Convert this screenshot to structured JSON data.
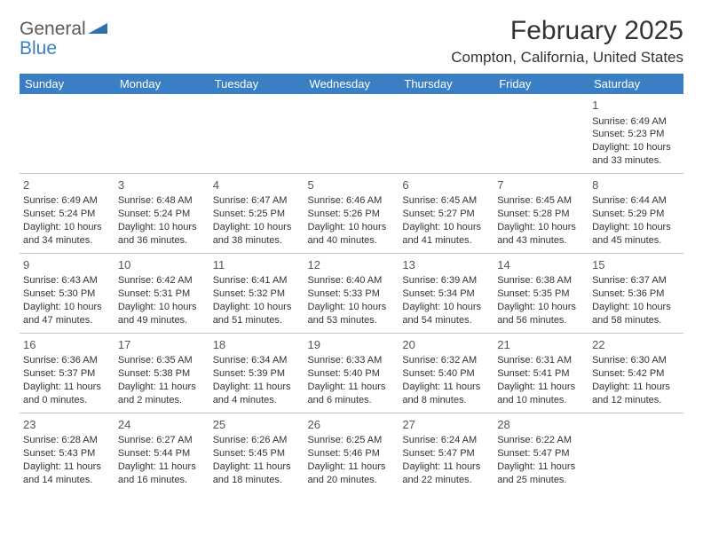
{
  "logo": {
    "top": "General",
    "bottom": "Blue",
    "triangle_color": "#2f6fb0"
  },
  "header": {
    "month_title": "February 2025",
    "location": "Compton, California, United States"
  },
  "colors": {
    "header_bg": "#3a7fc4",
    "header_text": "#ffffff",
    "grid_line": "#b8c5d0",
    "text": "#333333",
    "logo_gray": "#5a5a5a",
    "logo_blue": "#3a7fc4"
  },
  "weekdays": [
    "Sunday",
    "Monday",
    "Tuesday",
    "Wednesday",
    "Thursday",
    "Friday",
    "Saturday"
  ],
  "weeks": [
    [
      null,
      null,
      null,
      null,
      null,
      null,
      {
        "n": "1",
        "sr": "Sunrise: 6:49 AM",
        "ss": "Sunset: 5:23 PM",
        "d1": "Daylight: 10 hours",
        "d2": "and 33 minutes."
      }
    ],
    [
      {
        "n": "2",
        "sr": "Sunrise: 6:49 AM",
        "ss": "Sunset: 5:24 PM",
        "d1": "Daylight: 10 hours",
        "d2": "and 34 minutes."
      },
      {
        "n": "3",
        "sr": "Sunrise: 6:48 AM",
        "ss": "Sunset: 5:24 PM",
        "d1": "Daylight: 10 hours",
        "d2": "and 36 minutes."
      },
      {
        "n": "4",
        "sr": "Sunrise: 6:47 AM",
        "ss": "Sunset: 5:25 PM",
        "d1": "Daylight: 10 hours",
        "d2": "and 38 minutes."
      },
      {
        "n": "5",
        "sr": "Sunrise: 6:46 AM",
        "ss": "Sunset: 5:26 PM",
        "d1": "Daylight: 10 hours",
        "d2": "and 40 minutes."
      },
      {
        "n": "6",
        "sr": "Sunrise: 6:45 AM",
        "ss": "Sunset: 5:27 PM",
        "d1": "Daylight: 10 hours",
        "d2": "and 41 minutes."
      },
      {
        "n": "7",
        "sr": "Sunrise: 6:45 AM",
        "ss": "Sunset: 5:28 PM",
        "d1": "Daylight: 10 hours",
        "d2": "and 43 minutes."
      },
      {
        "n": "8",
        "sr": "Sunrise: 6:44 AM",
        "ss": "Sunset: 5:29 PM",
        "d1": "Daylight: 10 hours",
        "d2": "and 45 minutes."
      }
    ],
    [
      {
        "n": "9",
        "sr": "Sunrise: 6:43 AM",
        "ss": "Sunset: 5:30 PM",
        "d1": "Daylight: 10 hours",
        "d2": "and 47 minutes."
      },
      {
        "n": "10",
        "sr": "Sunrise: 6:42 AM",
        "ss": "Sunset: 5:31 PM",
        "d1": "Daylight: 10 hours",
        "d2": "and 49 minutes."
      },
      {
        "n": "11",
        "sr": "Sunrise: 6:41 AM",
        "ss": "Sunset: 5:32 PM",
        "d1": "Daylight: 10 hours",
        "d2": "and 51 minutes."
      },
      {
        "n": "12",
        "sr": "Sunrise: 6:40 AM",
        "ss": "Sunset: 5:33 PM",
        "d1": "Daylight: 10 hours",
        "d2": "and 53 minutes."
      },
      {
        "n": "13",
        "sr": "Sunrise: 6:39 AM",
        "ss": "Sunset: 5:34 PM",
        "d1": "Daylight: 10 hours",
        "d2": "and 54 minutes."
      },
      {
        "n": "14",
        "sr": "Sunrise: 6:38 AM",
        "ss": "Sunset: 5:35 PM",
        "d1": "Daylight: 10 hours",
        "d2": "and 56 minutes."
      },
      {
        "n": "15",
        "sr": "Sunrise: 6:37 AM",
        "ss": "Sunset: 5:36 PM",
        "d1": "Daylight: 10 hours",
        "d2": "and 58 minutes."
      }
    ],
    [
      {
        "n": "16",
        "sr": "Sunrise: 6:36 AM",
        "ss": "Sunset: 5:37 PM",
        "d1": "Daylight: 11 hours",
        "d2": "and 0 minutes."
      },
      {
        "n": "17",
        "sr": "Sunrise: 6:35 AM",
        "ss": "Sunset: 5:38 PM",
        "d1": "Daylight: 11 hours",
        "d2": "and 2 minutes."
      },
      {
        "n": "18",
        "sr": "Sunrise: 6:34 AM",
        "ss": "Sunset: 5:39 PM",
        "d1": "Daylight: 11 hours",
        "d2": "and 4 minutes."
      },
      {
        "n": "19",
        "sr": "Sunrise: 6:33 AM",
        "ss": "Sunset: 5:40 PM",
        "d1": "Daylight: 11 hours",
        "d2": "and 6 minutes."
      },
      {
        "n": "20",
        "sr": "Sunrise: 6:32 AM",
        "ss": "Sunset: 5:40 PM",
        "d1": "Daylight: 11 hours",
        "d2": "and 8 minutes."
      },
      {
        "n": "21",
        "sr": "Sunrise: 6:31 AM",
        "ss": "Sunset: 5:41 PM",
        "d1": "Daylight: 11 hours",
        "d2": "and 10 minutes."
      },
      {
        "n": "22",
        "sr": "Sunrise: 6:30 AM",
        "ss": "Sunset: 5:42 PM",
        "d1": "Daylight: 11 hours",
        "d2": "and 12 minutes."
      }
    ],
    [
      {
        "n": "23",
        "sr": "Sunrise: 6:28 AM",
        "ss": "Sunset: 5:43 PM",
        "d1": "Daylight: 11 hours",
        "d2": "and 14 minutes."
      },
      {
        "n": "24",
        "sr": "Sunrise: 6:27 AM",
        "ss": "Sunset: 5:44 PM",
        "d1": "Daylight: 11 hours",
        "d2": "and 16 minutes."
      },
      {
        "n": "25",
        "sr": "Sunrise: 6:26 AM",
        "ss": "Sunset: 5:45 PM",
        "d1": "Daylight: 11 hours",
        "d2": "and 18 minutes."
      },
      {
        "n": "26",
        "sr": "Sunrise: 6:25 AM",
        "ss": "Sunset: 5:46 PM",
        "d1": "Daylight: 11 hours",
        "d2": "and 20 minutes."
      },
      {
        "n": "27",
        "sr": "Sunrise: 6:24 AM",
        "ss": "Sunset: 5:47 PM",
        "d1": "Daylight: 11 hours",
        "d2": "and 22 minutes."
      },
      {
        "n": "28",
        "sr": "Sunrise: 6:22 AM",
        "ss": "Sunset: 5:47 PM",
        "d1": "Daylight: 11 hours",
        "d2": "and 25 minutes."
      },
      null
    ]
  ]
}
